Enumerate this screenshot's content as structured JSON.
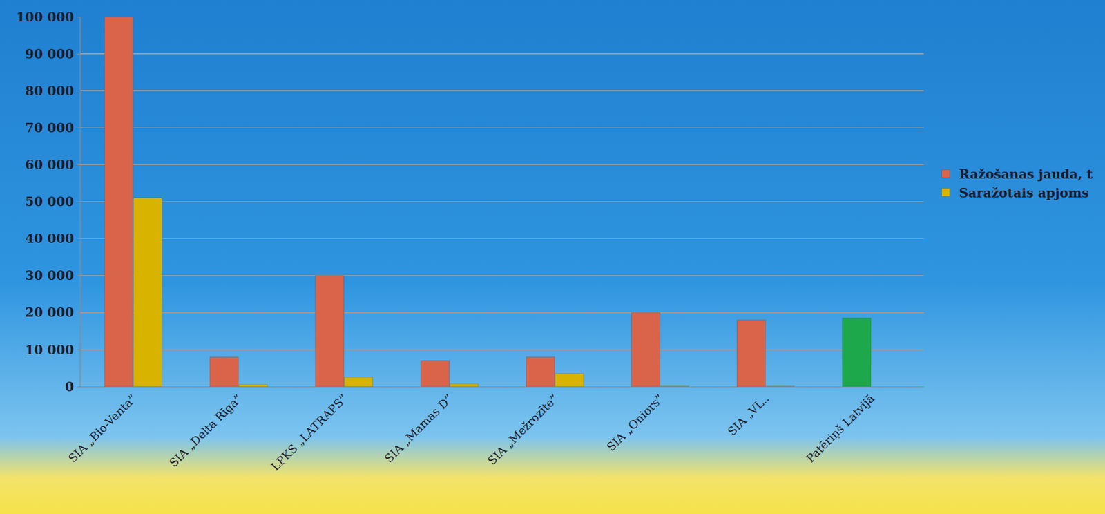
{
  "chart_data": {
    "type": "bar",
    "categories": [
      "SIA „Bio-Venta”",
      "SIA „Delta Rīga”",
      "LPKS „LATRAPS”",
      "SIA „Mamas D”",
      "SIA „Mežrozīte”",
      "SIA „Oniors”",
      "SIA „VL..",
      "Patēriņš Latvijā"
    ],
    "series": [
      {
        "name": "Ražošanas jauda, t",
        "color": "#d9644a",
        "colors": [
          "#d9644a",
          "#d9644a",
          "#d9644a",
          "#d9644a",
          "#d9644a",
          "#d9644a",
          "#d9644a",
          "#1ea84c"
        ],
        "values": [
          100000,
          8000,
          30000,
          7000,
          8000,
          20000,
          18000,
          18500
        ]
      },
      {
        "name": "Saražotais apjoms",
        "color": "#d8b400",
        "values": [
          51000,
          500,
          2500,
          700,
          3500,
          100,
          100,
          null
        ]
      }
    ],
    "ylim": [
      0,
      100000
    ],
    "yticks": [
      0,
      {
        "value": 10000,
        "label": "10 000"
      },
      {
        "value": 20000,
        "label": "20 000"
      },
      {
        "value": 30000,
        "label": "30 000"
      },
      {
        "value": 40000,
        "label": "40 000"
      },
      {
        "value": 50000,
        "label": "50 000"
      },
      {
        "value": 60000,
        "label": "60 000"
      },
      {
        "value": 70000,
        "label": "70 000"
      },
      {
        "value": 80000,
        "label": "80 000"
      },
      {
        "value": 90000,
        "label": "90 000"
      },
      {
        "value": 100000,
        "label": "100 000"
      }
    ],
    "grid": true,
    "legend": "right"
  }
}
